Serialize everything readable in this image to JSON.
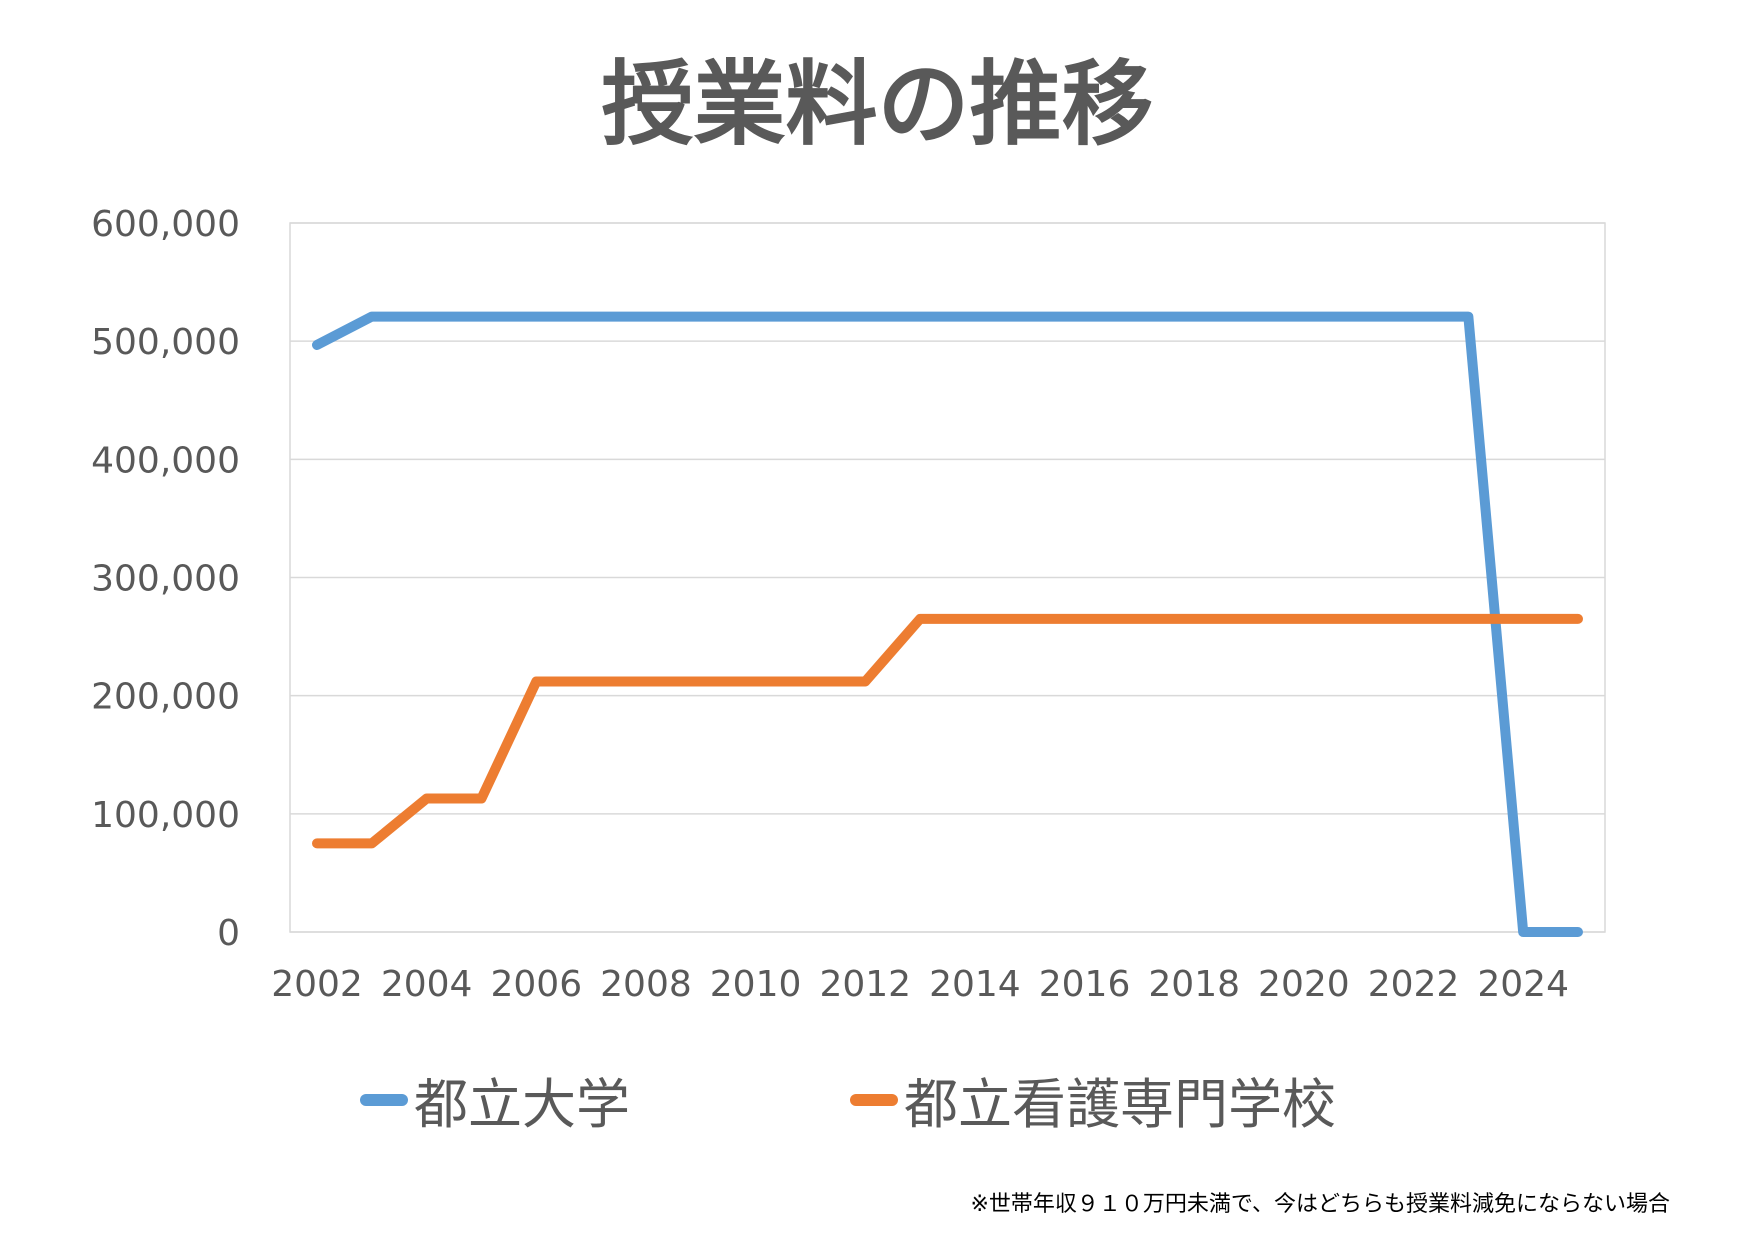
{
  "chart_data": {
    "type": "line",
    "title": "授業料の推移",
    "x": [
      2002,
      2003,
      2004,
      2005,
      2006,
      2007,
      2008,
      2009,
      2010,
      2011,
      2012,
      2013,
      2014,
      2015,
      2016,
      2017,
      2018,
      2019,
      2020,
      2021,
      2022,
      2023,
      2024,
      2025
    ],
    "x_tick_labels": [
      "2002",
      "2004",
      "2006",
      "2008",
      "2010",
      "2012",
      "2014",
      "2016",
      "2018",
      "2020",
      "2022",
      "2024"
    ],
    "y_tick_labels": [
      "0",
      "100,000",
      "200,000",
      "300,000",
      "400,000",
      "500,000",
      "600,000"
    ],
    "ylim": [
      0,
      600000
    ],
    "grid": "horizontal",
    "legend_position": "bottom",
    "series": [
      {
        "name": "都立大学",
        "color": "#5B9BD5",
        "values": [
          496800,
          520800,
          520800,
          520800,
          520800,
          520800,
          520800,
          520800,
          520800,
          520800,
          520800,
          520800,
          520800,
          520800,
          520800,
          520800,
          520800,
          520800,
          520800,
          520800,
          520800,
          520800,
          0,
          0
        ]
      },
      {
        "name": "都立看護専門学校",
        "color": "#ED7D31",
        "values": [
          75000,
          75000,
          113000,
          113000,
          212000,
          212000,
          212000,
          212000,
          212000,
          212000,
          212000,
          265000,
          265000,
          265000,
          265000,
          265000,
          265000,
          265000,
          265000,
          265000,
          265000,
          265000,
          265000,
          265000
        ]
      }
    ]
  },
  "footnote": "※世帯年収９１０万円未満で、今はどちらも授業料減免にならない場合"
}
